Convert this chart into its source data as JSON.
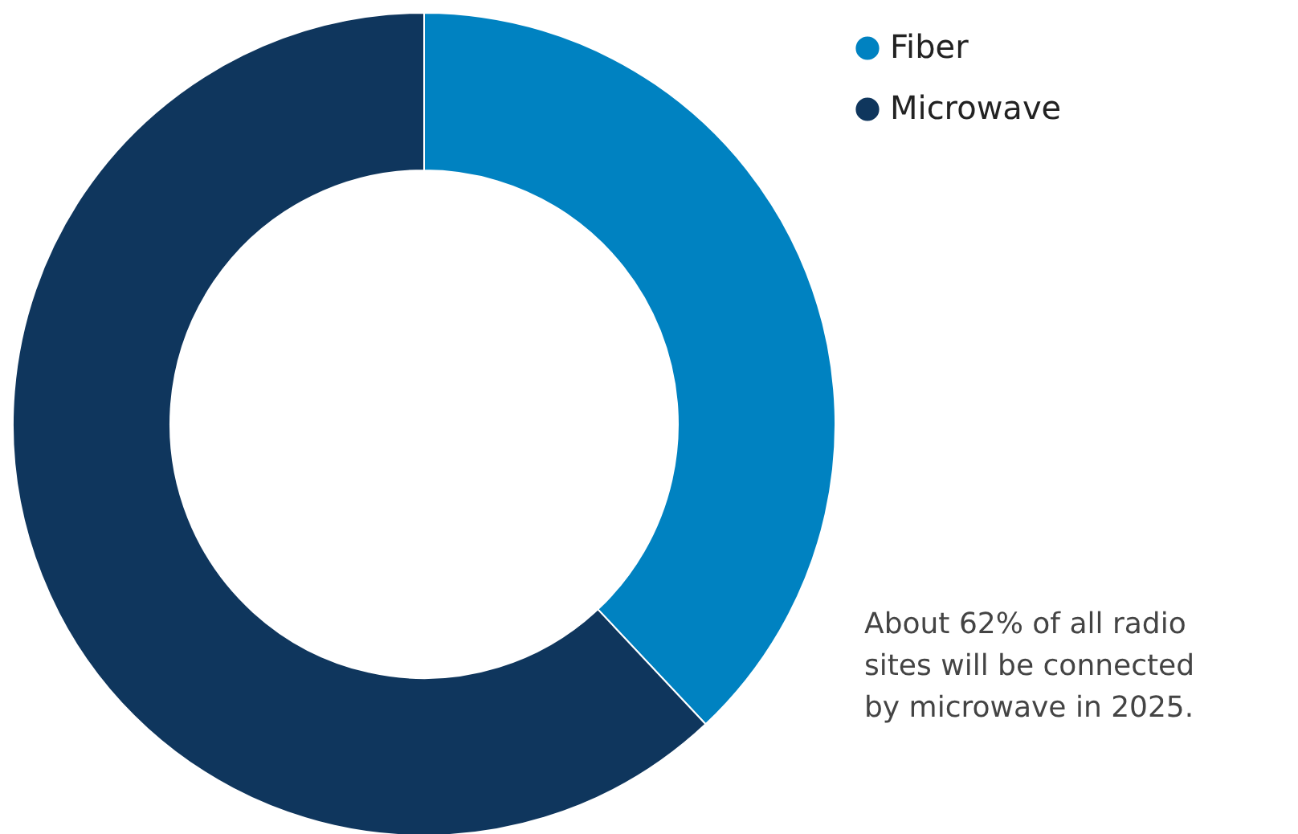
{
  "chart_data": {
    "type": "donut",
    "categories": [
      "Fiber",
      "Microwave"
    ],
    "values": [
      38,
      62
    ],
    "colors": [
      "#0082c1",
      "#0f365d"
    ],
    "legend": "top right",
    "annotations": [
      "About 62% of all radio sites will be connected by microwave in 2025."
    ]
  }
}
